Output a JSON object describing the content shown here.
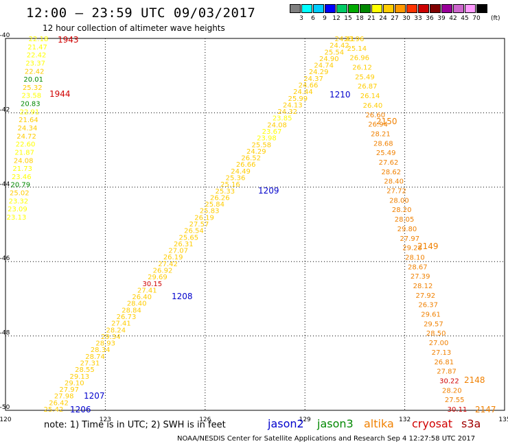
{
  "title": "12:00 – 23:59 UTC 09/03/2017",
  "subtitle": "12 hour collection of altimeter wave heights",
  "legend": {
    "unit": "(ft)",
    "ticks": [
      "3",
      "6",
      "9",
      "12",
      "15",
      "18",
      "21",
      "24",
      "27",
      "30",
      "33",
      "36",
      "39",
      "42",
      "45",
      "70"
    ],
    "colors": [
      "#808080",
      "#00ffff",
      "#00ccff",
      "#0000ff",
      "#00cc66",
      "#00aa00",
      "#008800",
      "#ffff00",
      "#ffcc00",
      "#ff9900",
      "#ff3300",
      "#cc0000",
      "#800000",
      "#990099",
      "#cc66cc",
      "#ff99ff",
      "#000000"
    ]
  },
  "axes": {
    "lon_ticks": [
      "120",
      "123",
      "126",
      "129",
      "132",
      "135"
    ],
    "lat_ticks": [
      "-40",
      "-42",
      "-44",
      "-46",
      "-48",
      "-50"
    ]
  },
  "colors": {
    "jason2": "#0000cc",
    "jason3": "#008800",
    "altika": "#f08000",
    "cryosat": "#d00000",
    "s3a": "#a00000"
  },
  "note": "note: 1) Time is in UTC; 2) SWH is in feet",
  "satellites": {
    "jason2": "jason2",
    "jason3": "jason3",
    "altika": "altika",
    "cryosat": "cryosat",
    "s3a": "s3a"
  },
  "credit": "NOAA/NESDIS Center for Satellite Applications and Research   Sep  4 12:27:58 UTC 2017",
  "tracks": [
    {
      "id": "west-column",
      "values": [
        [
          "22.18",
          "#ffff00"
        ],
        [
          "21.47",
          "#ffff00"
        ],
        [
          "22.42",
          "#ffff00"
        ],
        [
          "23.37",
          "#ffff00"
        ],
        [
          "22.42",
          "#ffcc00"
        ],
        [
          "20.01",
          "#008800"
        ],
        [
          "25.32",
          "#ffcc00"
        ],
        [
          "23.58",
          "#ffff00"
        ],
        [
          "20.83",
          "#008800"
        ],
        [
          "22.91",
          "#ffff00"
        ],
        [
          "21.64",
          "#ffcc00"
        ],
        [
          "24.34",
          "#ffcc00"
        ],
        [
          "24.72",
          "#ffcc00"
        ],
        [
          "22.60",
          "#ffff00"
        ],
        [
          "21.87",
          "#ffff00"
        ],
        [
          "24.08",
          "#ffcc00"
        ],
        [
          "21.73",
          "#ffff00"
        ],
        [
          "23.46",
          "#ffff00"
        ],
        [
          "20.79",
          "#008800"
        ],
        [
          "25.02",
          "#ffcc00"
        ],
        [
          "23.32",
          "#ffff00"
        ],
        [
          "23.09",
          "#ffff00"
        ],
        [
          "23.13",
          "#ffff00"
        ]
      ],
      "times": [
        {
          "label": "1943",
          "color": "#d00000"
        },
        {
          "label": "1944",
          "color": "#d00000"
        }
      ]
    },
    {
      "id": "diagonal-track",
      "values": [
        [
          "25.42",
          "#ffcc00"
        ],
        [
          "26.42",
          "#ffcc00"
        ],
        [
          "27.98",
          "#ffcc00"
        ],
        [
          "27.97",
          "#ffcc00"
        ],
        [
          "29.10",
          "#ffcc00"
        ],
        [
          "29.13",
          "#ffcc00"
        ],
        [
          "28.55",
          "#ffcc00"
        ],
        [
          "27.31",
          "#ffcc00"
        ],
        [
          "28.74",
          "#ffcc00"
        ],
        [
          "28.34",
          "#ffcc00"
        ],
        [
          "28.93",
          "#ffcc00"
        ],
        [
          "29.34",
          "#ffcc00"
        ],
        [
          "28.24",
          "#ffcc00"
        ],
        [
          "27.41",
          "#ffcc00"
        ],
        [
          "26.73",
          "#ffcc00"
        ],
        [
          "28.84",
          "#ffcc00"
        ],
        [
          "28.40",
          "#ffcc00"
        ],
        [
          "26.40",
          "#ffcc00"
        ],
        [
          "27.41",
          "#ffcc00"
        ],
        [
          "30.15",
          "#d00000"
        ],
        [
          "29.69",
          "#ffcc00"
        ],
        [
          "26.92",
          "#ffcc00"
        ],
        [
          "27.42",
          "#ffcc00"
        ],
        [
          "26.19",
          "#ffcc00"
        ],
        [
          "27.07",
          "#ffcc00"
        ],
        [
          "26.31",
          "#ffcc00"
        ],
        [
          "25.65",
          "#ffcc00"
        ],
        [
          "26.54",
          "#ffcc00"
        ],
        [
          "27.57",
          "#ffcc00"
        ],
        [
          "26.19",
          "#ffcc00"
        ],
        [
          "25.83",
          "#ffcc00"
        ],
        [
          "25.84",
          "#ffcc00"
        ],
        [
          "26.26",
          "#ffcc00"
        ],
        [
          "25.33",
          "#ffcc00"
        ],
        [
          "25.16",
          "#ffcc00"
        ],
        [
          "25.36",
          "#ffcc00"
        ],
        [
          "24.49",
          "#ffcc00"
        ],
        [
          "26.66",
          "#ffcc00"
        ],
        [
          "26.52",
          "#ffcc00"
        ],
        [
          "24.29",
          "#ffcc00"
        ],
        [
          "25.58",
          "#ffcc00"
        ],
        [
          "23.98",
          "#ffff00"
        ],
        [
          "23.67",
          "#ffff00"
        ],
        [
          "24.08",
          "#ffcc00"
        ],
        [
          "23.85",
          "#ffff00"
        ],
        [
          "24.32",
          "#ffcc00"
        ],
        [
          "24.13",
          "#ffcc00"
        ],
        [
          "25.99",
          "#ffcc00"
        ],
        [
          "24.44",
          "#ffcc00"
        ],
        [
          "24.66",
          "#ffcc00"
        ],
        [
          "24.37",
          "#ffcc00"
        ],
        [
          "24.29",
          "#ffcc00"
        ],
        [
          "24.74",
          "#ffcc00"
        ],
        [
          "24.90",
          "#ffcc00"
        ],
        [
          "25.54",
          "#ffcc00"
        ],
        [
          "24.42",
          "#ffcc00"
        ],
        [
          "24.41",
          "#ffcc00"
        ]
      ],
      "times": [
        {
          "label": "1206",
          "color": "#0000cc"
        },
        {
          "label": "1207",
          "color": "#0000cc"
        },
        {
          "label": "1208",
          "color": "#0000cc"
        },
        {
          "label": "1209",
          "color": "#0000cc"
        },
        {
          "label": "1210",
          "color": "#0000cc"
        }
      ]
    },
    {
      "id": "descending-track",
      "values": [
        [
          "23.96",
          "#ffcc00"
        ],
        [
          "25.14",
          "#ffcc00"
        ],
        [
          "26.96",
          "#ffcc00"
        ],
        [
          "26.12",
          "#ffcc00"
        ],
        [
          "25.49",
          "#ffcc00"
        ],
        [
          "26.87",
          "#ffcc00"
        ],
        [
          "26.14",
          "#ffcc00"
        ],
        [
          "26.40",
          "#ffcc00"
        ],
        [
          "26.60",
          "#f08000"
        ],
        [
          "26.94",
          "#f08000"
        ],
        [
          "28.21",
          "#f08000"
        ],
        [
          "28.68",
          "#f08000"
        ],
        [
          "25.49",
          "#f08000"
        ],
        [
          "27.62",
          "#f08000"
        ],
        [
          "28.62",
          "#f08000"
        ],
        [
          "28.40",
          "#f08000"
        ],
        [
          "27.72",
          "#f08000"
        ],
        [
          "28.00",
          "#f08000"
        ],
        [
          "28.20",
          "#f08000"
        ],
        [
          "28.05",
          "#f08000"
        ],
        [
          "29.80",
          "#f08000"
        ],
        [
          "27.97",
          "#f08000"
        ],
        [
          "29.28",
          "#f08000"
        ],
        [
          "28.10",
          "#f08000"
        ],
        [
          "28.67",
          "#f08000"
        ],
        [
          "27.39",
          "#f08000"
        ],
        [
          "28.12",
          "#f08000"
        ],
        [
          "27.92",
          "#f08000"
        ],
        [
          "26.37",
          "#f08000"
        ],
        [
          "29.61",
          "#f08000"
        ],
        [
          "29.57",
          "#f08000"
        ],
        [
          "28.50",
          "#f08000"
        ],
        [
          "27.00",
          "#f08000"
        ],
        [
          "27.13",
          "#f08000"
        ],
        [
          "26.81",
          "#f08000"
        ],
        [
          "27.87",
          "#f08000"
        ],
        [
          "30.22",
          "#d00000"
        ],
        [
          "28.20",
          "#f08000"
        ],
        [
          "27.55",
          "#f08000"
        ],
        [
          "30.11",
          "#d00000"
        ]
      ],
      "times": [
        {
          "label": "2150",
          "color": "#f08000"
        },
        {
          "label": "2149",
          "color": "#f08000"
        },
        {
          "label": "2148",
          "color": "#f08000"
        },
        {
          "label": "2147",
          "color": "#f08000"
        }
      ]
    }
  ]
}
